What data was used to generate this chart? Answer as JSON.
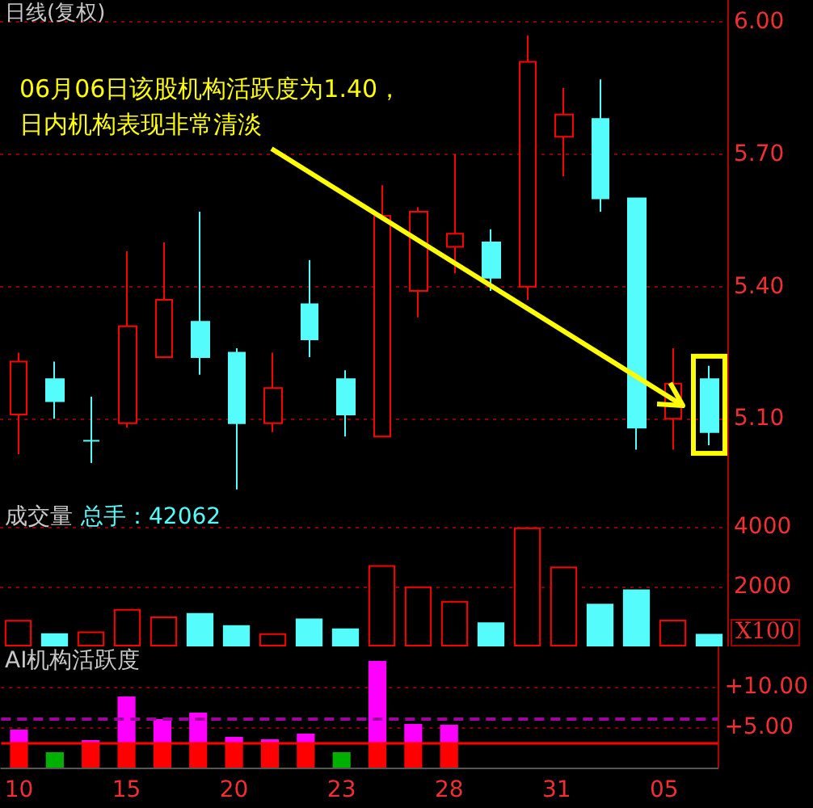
{
  "chart_data": [
    {
      "type": "candlestick",
      "title": "日线(复权)",
      "annotations": [
        "06月06日该股机构活跃度为1.40，日内机构表现非常清淡"
      ],
      "categories": [
        "10",
        null,
        null,
        "15",
        null,
        null,
        "20",
        null,
        null,
        "23",
        null,
        null,
        "28",
        null,
        null,
        "31",
        null,
        null,
        "05",
        null
      ],
      "ohlc": [
        [
          5.11,
          5.25,
          5.02,
          5.23
        ],
        [
          5.19,
          5.23,
          5.1,
          5.14
        ],
        [
          5.05,
          5.15,
          5.0,
          5.05
        ],
        [
          5.09,
          5.48,
          5.08,
          5.31
        ],
        [
          5.24,
          5.5,
          5.24,
          5.37
        ],
        [
          5.32,
          5.57,
          5.2,
          5.24
        ],
        [
          5.25,
          5.26,
          4.94,
          5.09
        ],
        [
          5.09,
          5.25,
          5.07,
          5.17
        ],
        [
          5.36,
          5.46,
          5.24,
          5.28
        ],
        [
          5.19,
          5.21,
          5.06,
          5.11
        ],
        [
          5.06,
          5.63,
          5.06,
          5.56
        ],
        [
          5.39,
          5.58,
          5.33,
          5.57
        ],
        [
          5.49,
          5.7,
          5.43,
          5.52
        ],
        [
          5.5,
          5.53,
          5.39,
          5.42
        ],
        [
          5.4,
          5.97,
          5.37,
          5.91
        ],
        [
          5.74,
          5.85,
          5.65,
          5.79
        ],
        [
          5.78,
          5.87,
          5.57,
          5.6
        ],
        [
          5.6,
          5.6,
          5.03,
          5.08
        ],
        [
          5.1,
          5.26,
          5.03,
          5.18
        ],
        [
          5.19,
          5.22,
          5.04,
          5.07
        ]
      ],
      "colors": [
        "#ff0000",
        "#54fcfc",
        "#54fcfc",
        "#ff0000",
        "#ff0000",
        "#54fcfc",
        "#54fcfc",
        "#ff0000",
        "#54fcfc",
        "#54fcfc",
        "#ff0000",
        "#ff0000",
        "#ff0000",
        "#54fcfc",
        "#ff0000",
        "#ff0000",
        "#54fcfc",
        "#54fcfc",
        "#ff0000",
        "#54fcfc"
      ],
      "ylim": [
        4.91,
        6.05
      ],
      "yticks": [
        {
          "value": 5.1,
          "label": "5.10"
        },
        {
          "value": 5.4,
          "label": "5.40"
        },
        {
          "value": 5.7,
          "label": "5.70"
        },
        {
          "value": 6,
          "label": "6.00"
        }
      ],
      "grid": "y",
      "tick_labels": "y"
    },
    {
      "type": "bar",
      "title": "成交量",
      "subtitle": "总手：42062",
      "ylabel": "X100",
      "categories": [
        "10",
        null,
        null,
        "15",
        null,
        null,
        "20",
        null,
        null,
        "23",
        null,
        null,
        "28",
        null,
        null,
        "31",
        null,
        null,
        "05",
        null
      ],
      "values": [
        880,
        440,
        500,
        1250,
        1000,
        1110,
        710,
        440,
        930,
        600,
        2710,
        2000,
        1520,
        800,
        3970,
        2660,
        1420,
        1900,
        890,
        420
      ],
      "colors": [
        "#ff0000",
        "#54fcfc",
        "#ff0000",
        "#ff0000",
        "#ff0000",
        "#54fcfc",
        "#54fcfc",
        "#ff0000",
        "#54fcfc",
        "#54fcfc",
        "#ff0000",
        "#ff0000",
        "#ff0000",
        "#54fcfc",
        "#ff0000",
        "#ff0000",
        "#54fcfc",
        "#54fcfc",
        "#ff0000",
        "#54fcfc"
      ],
      "ylim": [
        0,
        4800
      ],
      "yticks": [
        2000,
        4000
      ],
      "grid": "y",
      "tick_labels": "y"
    },
    {
      "type": "bar",
      "title": "AI机构活跃度",
      "stacked": true,
      "categories": [
        "10",
        null,
        null,
        "15",
        null,
        null,
        "20",
        null,
        null,
        "23",
        null,
        null,
        "28",
        null,
        null,
        "31",
        null,
        null,
        "05",
        null
      ],
      "series": [
        {
          "color": "#ff0000",
          "values": [
            3,
            null,
            3,
            3,
            3,
            3,
            3,
            3,
            3,
            null,
            3,
            3,
            3,
            null,
            null,
            null,
            null,
            null,
            null,
            null
          ]
        },
        {
          "color": "#ff00ff",
          "values": [
            1.7,
            null,
            0.4,
            5.8,
            3.0,
            3.8,
            0.8,
            0.5,
            1.2,
            null,
            10.2,
            2.4,
            2.3,
            null,
            null,
            null,
            null,
            null,
            null,
            null
          ]
        },
        {
          "color": "#00b000",
          "values": [
            null,
            1.9,
            null,
            null,
            null,
            null,
            null,
            null,
            null,
            1.9,
            null,
            null,
            null,
            null,
            null,
            null,
            null,
            null,
            null,
            null
          ]
        }
      ],
      "ylim": [
        0,
        15
      ],
      "yticks": [
        {
          "value": 5,
          "label": "+5.00"
        },
        {
          "value": 10,
          "label": "+10.00"
        }
      ],
      "ref_lines": [
        {
          "axis": "y",
          "value": 3,
          "color": "#ff0000",
          "line_style": "solid"
        },
        {
          "axis": "y",
          "value": 6,
          "color": "#a000a0",
          "line_style": "dashed"
        }
      ],
      "grid": "y"
    }
  ]
}
